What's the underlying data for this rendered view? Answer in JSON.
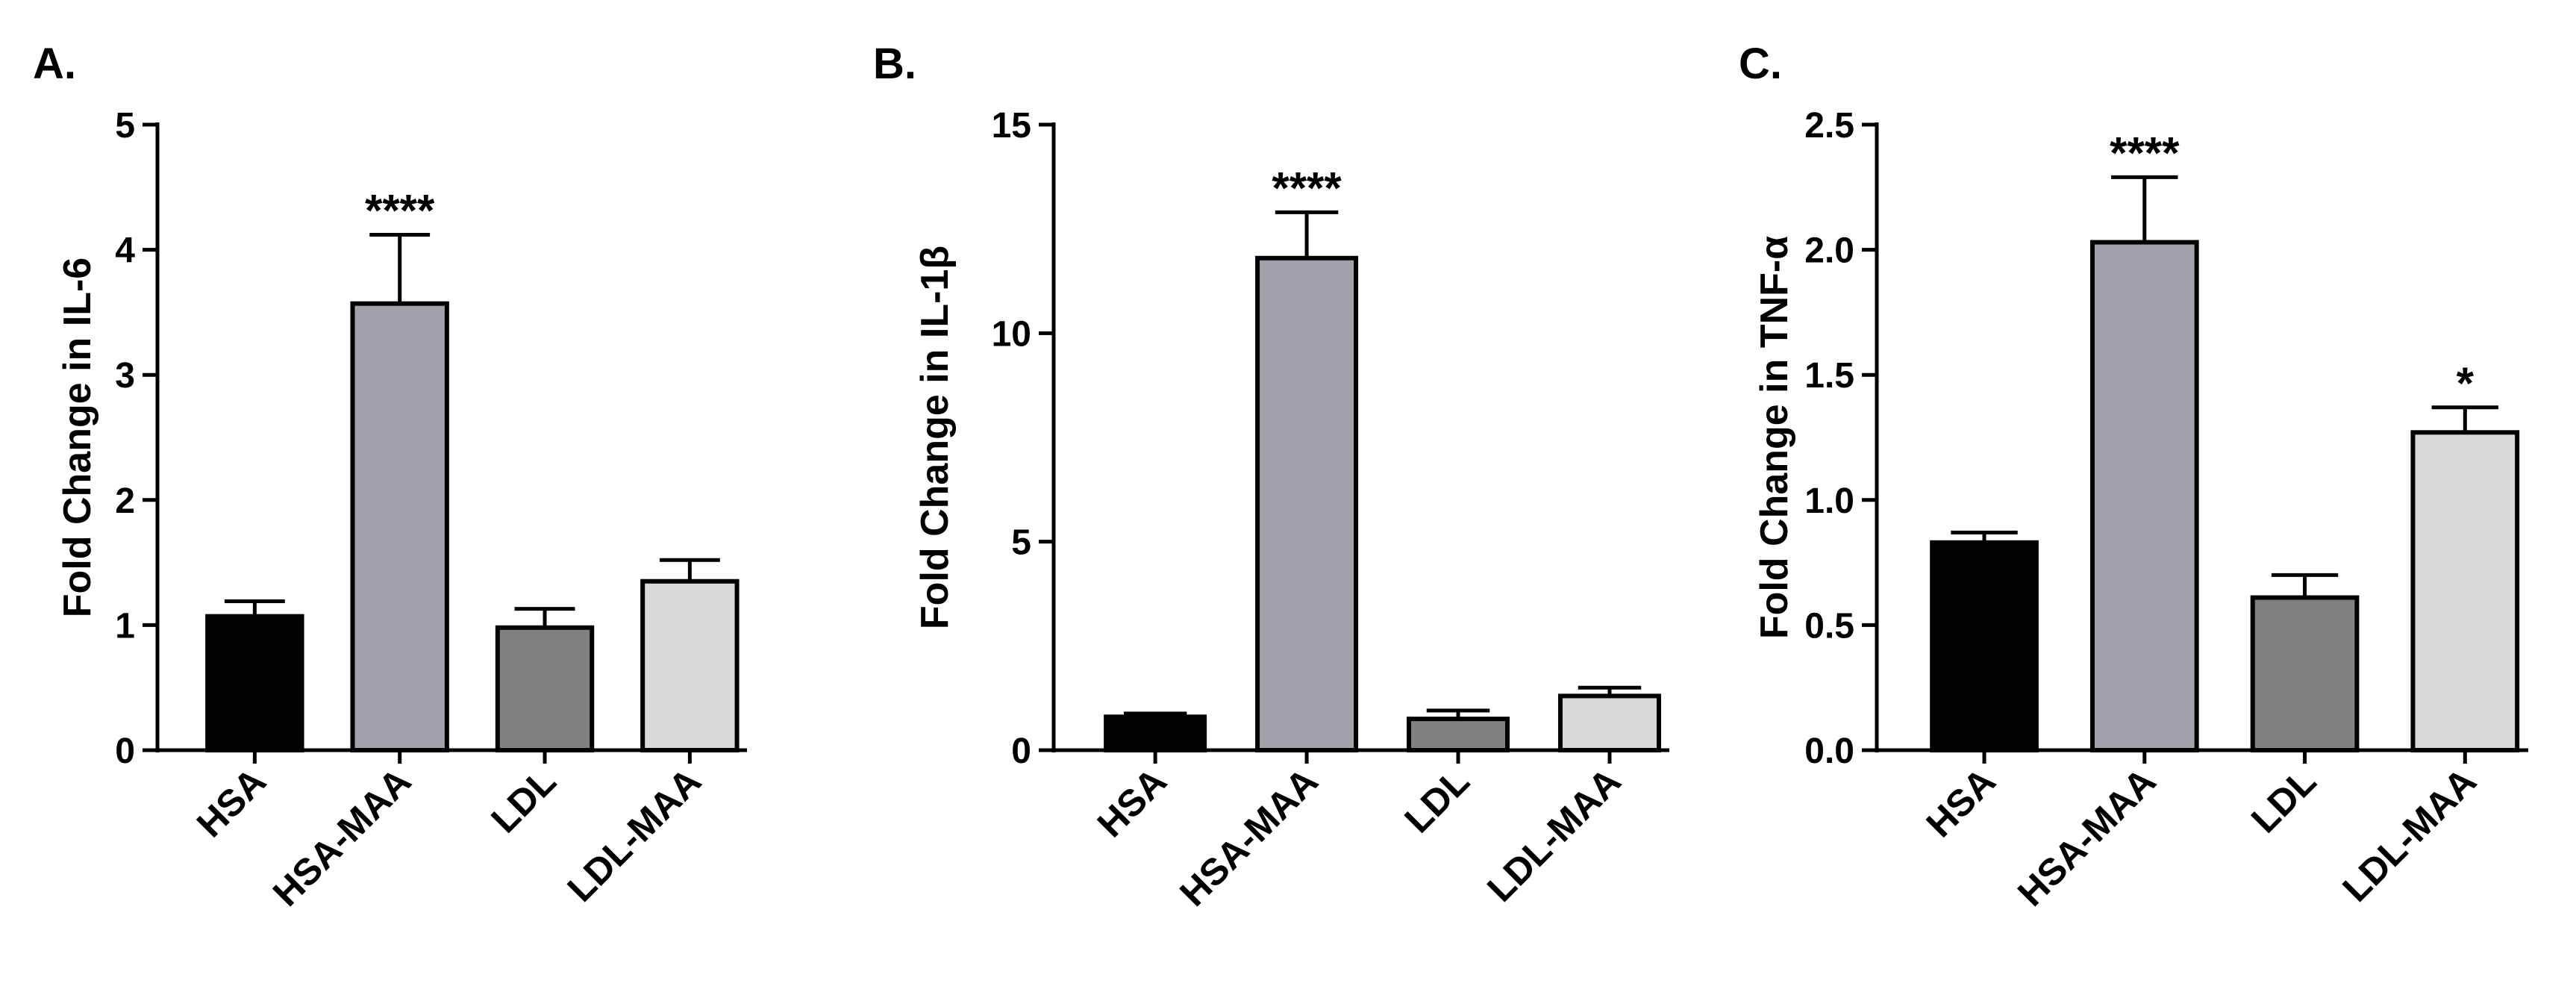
{
  "chart_data": [
    {
      "type": "bar",
      "panel_label": "A.",
      "y_label": "Fold Change in IL-6",
      "categories": [
        "HSA",
        "HSA-MAA",
        "LDL",
        "LDL-MAA"
      ],
      "values": [
        1.07,
        3.57,
        0.98,
        1.35
      ],
      "errors": [
        0.12,
        0.55,
        0.15,
        0.17
      ],
      "annotations": [
        null,
        "****",
        null,
        null
      ],
      "colors": [
        "#000000",
        "#a2a2aa",
        "#808080",
        "#d9d9d9"
      ],
      "ylim": [
        0,
        5
      ],
      "yticks": [
        0,
        1,
        2,
        3,
        4,
        5
      ]
    },
    {
      "type": "bar",
      "panel_label": "B.",
      "y_label": "Fold Change in IL-1β",
      "categories": [
        "HSA",
        "HSA-MAA",
        "LDL",
        "LDL-MAA"
      ],
      "values": [
        0.8,
        11.8,
        0.75,
        1.3
      ],
      "errors": [
        0.08,
        1.1,
        0.2,
        0.2
      ],
      "annotations": [
        null,
        "****",
        null,
        null
      ],
      "colors": [
        "#000000",
        "#a2a2aa",
        "#808080",
        "#d9d9d9"
      ],
      "ylim": [
        0,
        15
      ],
      "yticks": [
        0,
        5,
        10,
        15
      ]
    },
    {
      "type": "bar",
      "panel_label": "C.",
      "y_label": "Fold Change in TNF-α",
      "categories": [
        "HSA",
        "HSA-MAA",
        "LDL",
        "LDL-MAA"
      ],
      "values": [
        0.83,
        2.03,
        0.61,
        1.27
      ],
      "errors": [
        0.04,
        0.26,
        0.09,
        0.1
      ],
      "annotations": [
        null,
        "****",
        null,
        "*"
      ],
      "colors": [
        "#000000",
        "#a2a2aa",
        "#808080",
        "#d9d9d9"
      ],
      "ylim": [
        0,
        2.5
      ],
      "yticks": [
        {
          "value": 0,
          "label": "0.0"
        },
        0.5,
        {
          "value": 1,
          "label": "1.0"
        },
        1.5,
        {
          "value": 2,
          "label": "2.0"
        },
        2.5
      ]
    }
  ]
}
